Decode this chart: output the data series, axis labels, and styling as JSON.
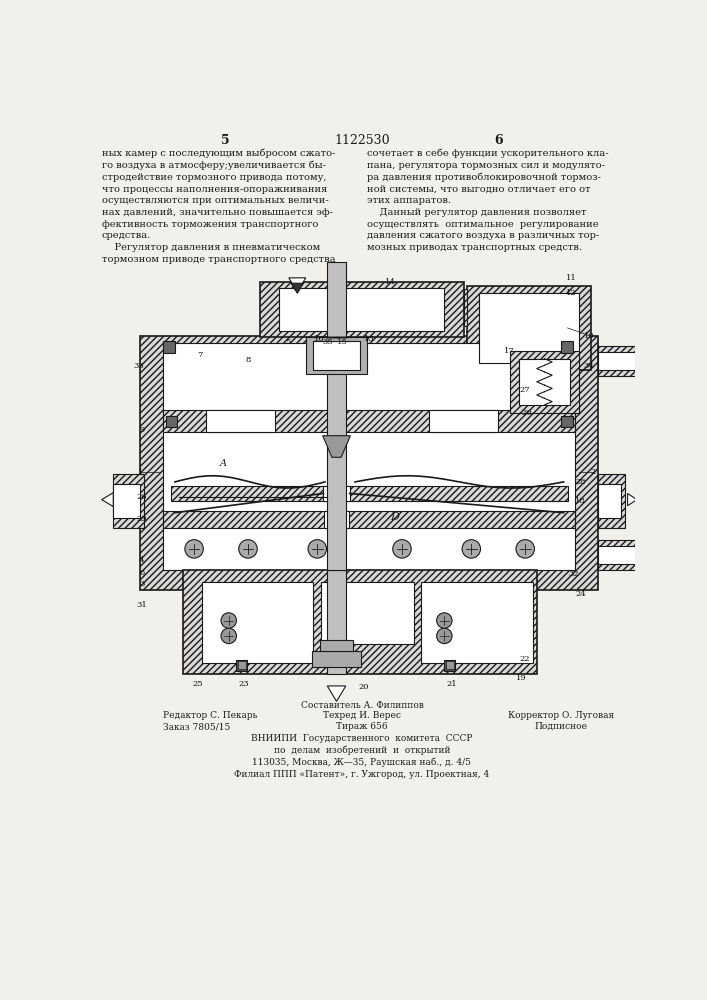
{
  "page_number_left": "5",
  "page_number_right": "6",
  "patent_number": "1122530",
  "text_left": "ных камер с последующим выбросом сжато-\nго воздуха в атмосферу;увеличивается бы-\nстродействие тормозного привода потому,\nчто процессы наполнения-опоражнивания\nосуществляются при оптимальных величи-\nнах давлений, значительно повышается эф-\nфективность торможения транспортного\nсредства.\n    Регулятор давления в пневматическом\nтормозном приводе транспортного средства",
  "text_right": "сочетает в себе функции ускорительного кла-\nпана, регулятора тормозных сил и модулято-\nра давления противоблокировочной тормоз-\nной системы, что выгодно отличает его от\nэтих аппаратов.\n    Данный регулятор давления позволяет\nосуществлять  оптимальное  регулирование\nдавления сжатого воздуха в различных тор-\nмозных приводах транспортных средств.",
  "footer_col1_line1": "Редактор С. Пекарь",
  "footer_col1_line2": "Заказ 7805/15",
  "footer_col2_line0": "Составитель А. Филиппов",
  "footer_col2_line1": "Техред И. Верес",
  "footer_col2_line2": "Тираж 656",
  "footer_col3_line1": "Корректор О. Луговая",
  "footer_col3_line2": "Подписное",
  "footer_vniipи": "ВНИИПИ  Государственного  комитета  СССР",
  "footer_po": "по  делам  изобретений  и  открытий",
  "footer_addr1": "113035, Москва, Ж—35, Раушская наб., д. 4/5",
  "footer_addr2": "Филиал ППП «Патент», г. Ужгород, ул. Проектная, 4",
  "bg_color": "#f2f0eb",
  "text_color": "#1a1a1a",
  "hatch_color": "#777777",
  "body_fill": "#d8d8d8",
  "inner_fill": "#ffffff",
  "dark_fill": "#888888"
}
